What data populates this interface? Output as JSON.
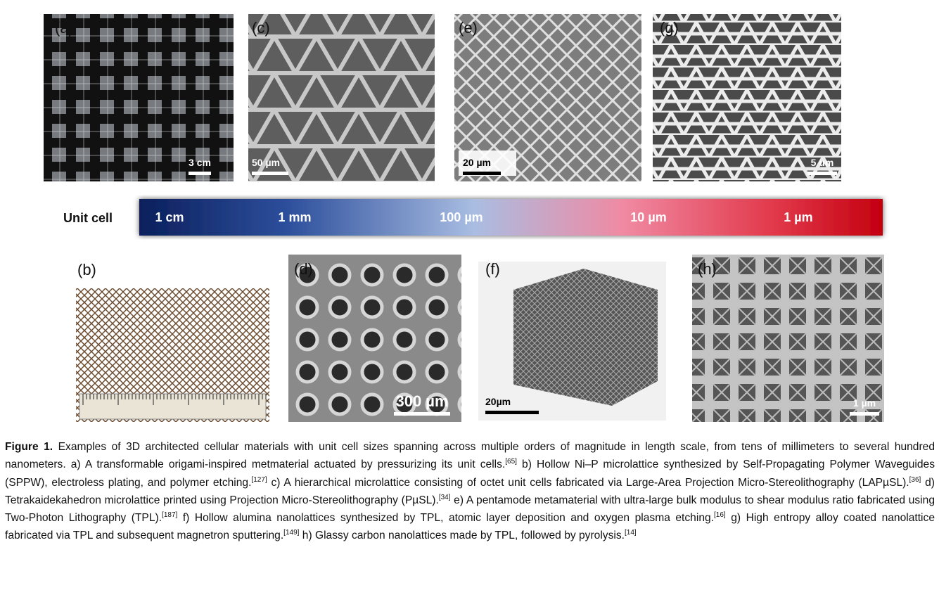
{
  "panels": [
    {
      "label": "(a)",
      "scale_bar": "3 cm"
    },
    {
      "label": "(c)",
      "scale_bar": "50 µm"
    },
    {
      "label": "(e)",
      "scale_bar": "20 µm"
    },
    {
      "label": "(g)",
      "scale_bar": "5 um"
    },
    {
      "label": "(b)"
    },
    {
      "label": "(d)",
      "scale_bar": "300 µm"
    },
    {
      "label": "(f)",
      "scale_bar": "20µm"
    },
    {
      "label": "(h)",
      "scale_bar": "1 µm"
    }
  ],
  "unit_cell": {
    "label": "Unit cell",
    "ticks": [
      "1 cm",
      "1 mm",
      "100 µm",
      "10 µm",
      "1 µm"
    ]
  },
  "caption": {
    "lead": "Figure 1.",
    "segments": [
      {
        "text": "Examples of 3D architected cellular materials with unit cell sizes spanning across multiple orders of magnitude in length scale, from tens of millimeters to several hundred nanometers. a) A transformable origami-inspired metmaterial actuated by pressurizing its unit cells.",
        "ref": "[65]"
      },
      {
        "text": "b) Hollow Ni–P microlattice synthesized by Self-Propagating Polymer Waveguides (SPPW), electroless plating, and polymer etching.",
        "ref": "[127]"
      },
      {
        "text": "c) A hierarchical microlattice consisting of octet unit cells fabricated via Large-Area Projection Micro-Stereolithography (LAPµSL).",
        "ref": "[36]"
      },
      {
        "text": "d) Tetrakaidekahedron microlattice printed using Projection Micro-Stereolithography (PµSL).",
        "ref": "[34]"
      },
      {
        "text": "e) A pentamode metamaterial with ultra-large bulk modulus to shear modulus ratio fabricated using Two-Photon Lithography (TPL).",
        "ref": "[187]"
      },
      {
        "text": "f) Hollow alumina nanolattices synthesized by TPL, atomic layer deposition and oxygen plasma etching.",
        "ref": "[16]"
      },
      {
        "text": "g) High entropy alloy coated nanolattice fabricated via TPL and subsequent magnetron sputtering.",
        "ref": "[149]"
      },
      {
        "text": "h) Glassy carbon nanolattices made by TPL, followed by pyrolysis.",
        "ref": "[14]"
      }
    ]
  }
}
